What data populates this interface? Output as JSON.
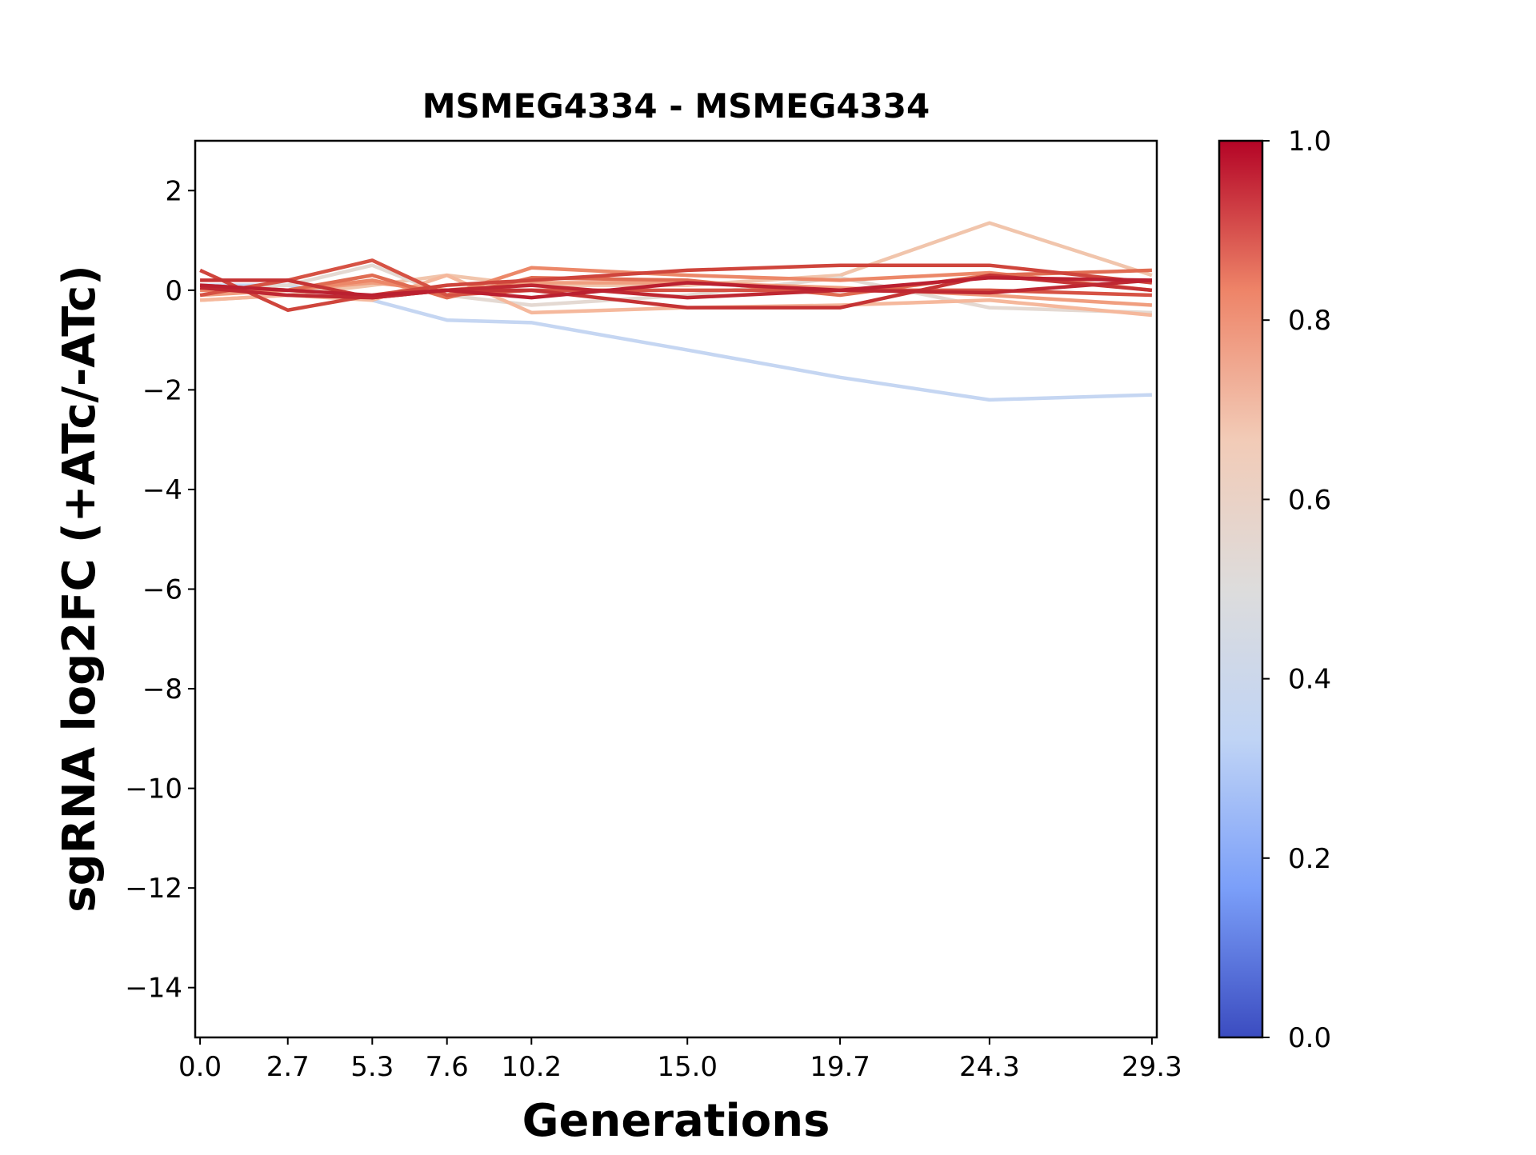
{
  "chart_data": {
    "type": "line",
    "title": "MSMEG4334 - MSMEG4334",
    "xlabel": "Generations",
    "ylabel": "sgRNA log2FC (+ATc/-ATc)",
    "x": [
      0.0,
      2.7,
      5.3,
      7.6,
      10.2,
      15.0,
      19.7,
      24.3,
      29.3
    ],
    "x_tick_labels": [
      "0.0",
      "2.7",
      "5.3",
      "7.6",
      "10.2",
      "15.0",
      "19.7",
      "24.3",
      "29.3"
    ],
    "xlim": [
      -0.15,
      29.45
    ],
    "ylim": [
      -15,
      3
    ],
    "y_ticks": [
      2,
      0,
      -2,
      -4,
      -6,
      -8,
      -10,
      -12,
      -14
    ],
    "y_tick_labels": [
      "2",
      "0",
      "−2",
      "−4",
      "−6",
      "−8",
      "−10",
      "−12",
      "−14"
    ],
    "grid": false,
    "colormap": "coolwarm",
    "colorbar": {
      "range": [
        0.0,
        1.0
      ],
      "ticks": [
        0.0,
        0.2,
        0.4,
        0.6,
        0.8,
        1.0
      ],
      "tick_labels": [
        "0.0",
        "0.2",
        "0.4",
        "0.6",
        "0.8",
        "1.0"
      ],
      "stops": [
        "#3b4cc0",
        "#7b9ff9",
        "#c0d4f5",
        "#dddcdc",
        "#f2cbb7",
        "#ee8468",
        "#b40426"
      ]
    },
    "series": [
      {
        "color_value": 0.4,
        "color": "#c5d6f2",
        "values": [
          0.1,
          0.1,
          -0.2,
          -0.6,
          -0.65,
          -1.2,
          -1.75,
          -2.2,
          -2.1
        ]
      },
      {
        "color_value": 0.62,
        "color": "#f1c5ac",
        "values": [
          -0.2,
          -0.1,
          0.1,
          0.3,
          0.1,
          0.1,
          0.3,
          1.35,
          0.3
        ]
      },
      {
        "color_value": 0.55,
        "color": "#e4d9d2",
        "values": [
          0.0,
          0.1,
          0.5,
          -0.1,
          -0.3,
          -0.1,
          0.25,
          -0.35,
          -0.45
        ]
      },
      {
        "color_value": 0.68,
        "color": "#f5b89c",
        "values": [
          -0.2,
          -0.1,
          -0.2,
          0.3,
          -0.45,
          -0.35,
          -0.3,
          -0.2,
          -0.5
        ]
      },
      {
        "color_value": 0.75,
        "color": "#f09e7f",
        "values": [
          -0.1,
          0.0,
          0.15,
          0.0,
          0.15,
          0.15,
          0.05,
          -0.1,
          -0.3
        ]
      },
      {
        "color_value": 0.8,
        "color": "#ec8869",
        "values": [
          0.0,
          0.0,
          0.2,
          -0.1,
          0.45,
          0.3,
          0.2,
          0.35,
          0.0
        ]
      },
      {
        "color_value": 0.85,
        "color": "#e06c52",
        "values": [
          0.1,
          0.0,
          0.3,
          -0.15,
          0.25,
          0.2,
          -0.1,
          0.3,
          0.4
        ]
      },
      {
        "color_value": 0.88,
        "color": "#d65244",
        "values": [
          -0.1,
          0.2,
          0.6,
          -0.1,
          0.0,
          0.0,
          0.0,
          0.0,
          -0.1
        ]
      },
      {
        "color_value": 0.9,
        "color": "#cf453c",
        "values": [
          0.4,
          -0.4,
          -0.1,
          0.1,
          0.2,
          0.4,
          0.5,
          0.5,
          0.15
        ]
      },
      {
        "color_value": 0.95,
        "color": "#c53334",
        "values": [
          0.2,
          0.2,
          -0.15,
          0.0,
          0.0,
          -0.35,
          -0.35,
          0.3,
          0.0
        ]
      },
      {
        "color_value": 0.97,
        "color": "#bf2832",
        "values": [
          0.05,
          -0.1,
          -0.15,
          0.0,
          0.1,
          -0.15,
          0.0,
          -0.05,
          0.2
        ]
      },
      {
        "color_value": 0.98,
        "color": "#bb2030",
        "values": [
          0.1,
          0.0,
          -0.1,
          0.0,
          -0.15,
          0.15,
          0.0,
          0.25,
          0.2
        ]
      }
    ]
  }
}
